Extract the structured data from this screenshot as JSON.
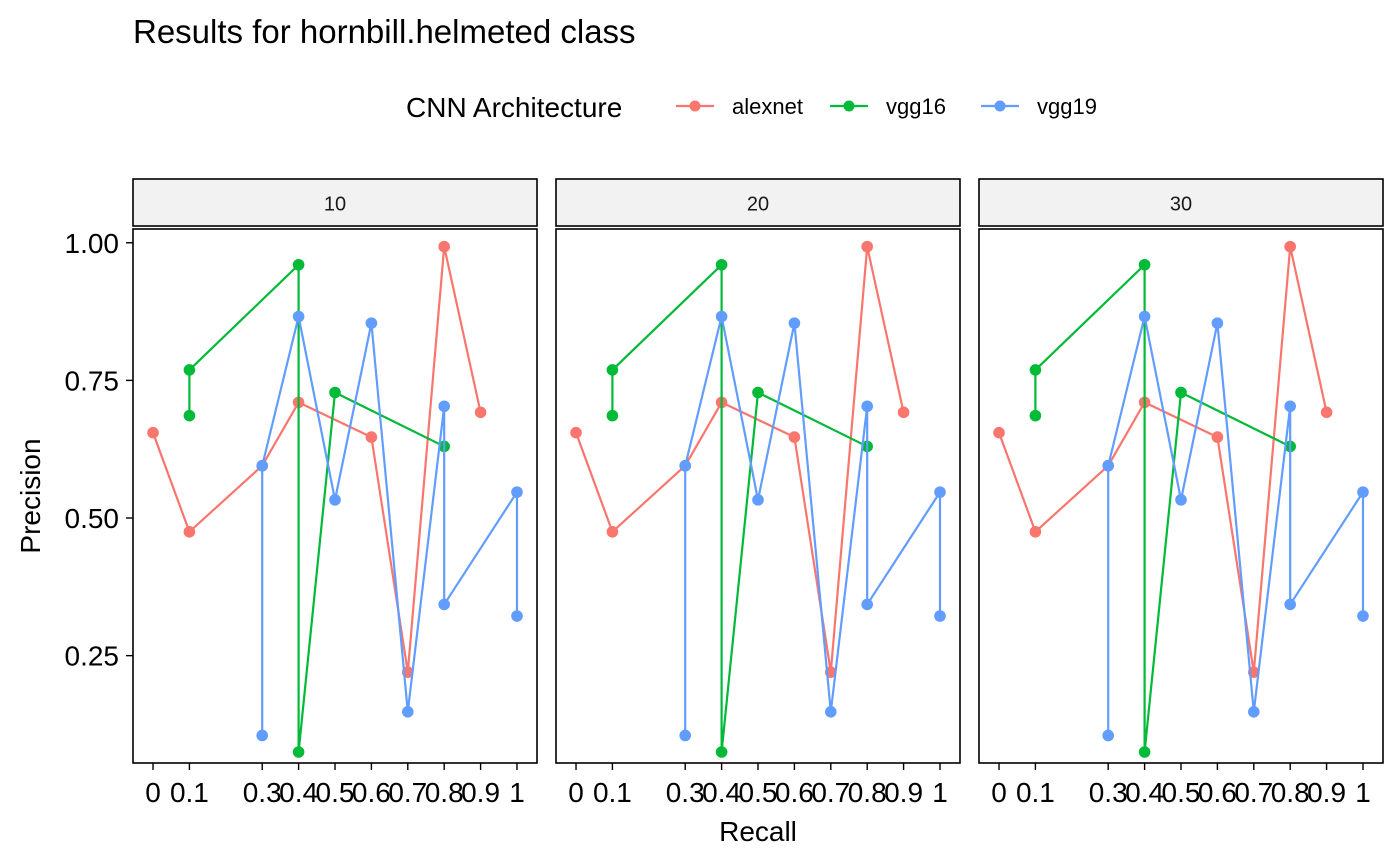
{
  "chart_data": {
    "type": "line",
    "title": "Results for hornbill.helmeted class",
    "xlabel": "Recall",
    "ylabel": "Precision",
    "legend": {
      "title": "CNN Architecture",
      "position": "top",
      "entries": [
        "alexnet",
        "vgg16",
        "vgg19"
      ]
    },
    "facets": [
      "10",
      "20",
      "30"
    ],
    "x_ticks": [
      {
        "value": 0,
        "label": "0"
      },
      {
        "value": 0.1,
        "label": "0.1"
      },
      {
        "value": 0.3,
        "label": "0.3"
      },
      {
        "value": 0.4,
        "label": "0.4"
      },
      {
        "value": 0.5,
        "label": "0.5"
      },
      {
        "value": 0.6,
        "label": "0.6"
      },
      {
        "value": 0.7,
        "label": "0.7"
      },
      {
        "value": 0.8,
        "label": "0.8"
      },
      {
        "value": 0.9,
        "label": "0.9"
      },
      {
        "value": 1,
        "label": "1"
      }
    ],
    "y_ticks": [
      {
        "value": 0.25,
        "label": "0.25"
      },
      {
        "value": 0.5,
        "label": "0.50"
      },
      {
        "value": 0.75,
        "label": "0.75"
      },
      {
        "value": 1.0,
        "label": "1.00"
      }
    ],
    "xlim": [
      -0.055,
      1.055
    ],
    "ylim": [
      0.055,
      1.025
    ],
    "grid": false,
    "series": [
      {
        "name": "alexnet",
        "color": "#F8766D",
        "points": [
          {
            "x": 0,
            "y": 0.655
          },
          {
            "x": 0.1,
            "y": 0.475
          },
          {
            "x": 0.3,
            "y": 0.595
          },
          {
            "x": 0.4,
            "y": 0.71
          },
          {
            "x": 0.6,
            "y": 0.647
          },
          {
            "x": 0.7,
            "y": 0.22
          },
          {
            "x": 0.8,
            "y": 0.993
          },
          {
            "x": 0.9,
            "y": 0.692
          }
        ]
      },
      {
        "name": "vgg16",
        "color": "#00BA38",
        "points": [
          {
            "x": 0.1,
            "y": 0.686
          },
          {
            "x": 0.1,
            "y": 0.769
          },
          {
            "x": 0.4,
            "y": 0.96
          },
          {
            "x": 0.4,
            "y": 0.075
          },
          {
            "x": 0.5,
            "y": 0.728
          },
          {
            "x": 0.8,
            "y": 0.63
          }
        ]
      },
      {
        "name": "vgg19",
        "color": "#619CFF",
        "points": [
          {
            "x": 0.3,
            "y": 0.105
          },
          {
            "x": 0.3,
            "y": 0.595
          },
          {
            "x": 0.4,
            "y": 0.866
          },
          {
            "x": 0.5,
            "y": 0.533
          },
          {
            "x": 0.6,
            "y": 0.854
          },
          {
            "x": 0.7,
            "y": 0.148
          },
          {
            "x": 0.8,
            "y": 0.703
          },
          {
            "x": 0.8,
            "y": 0.343
          },
          {
            "x": 1,
            "y": 0.547
          },
          {
            "x": 1,
            "y": 0.322
          }
        ]
      }
    ]
  }
}
